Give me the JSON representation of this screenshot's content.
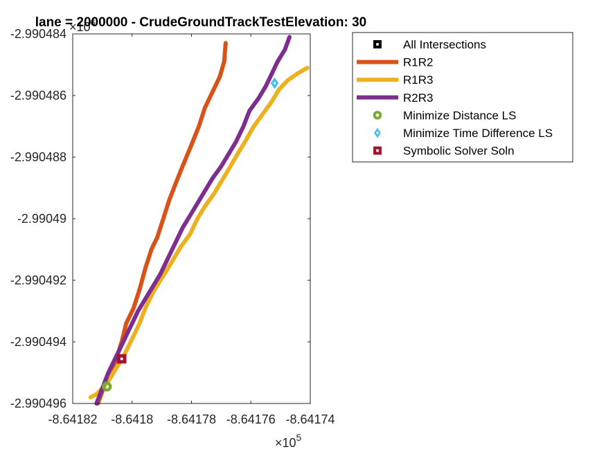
{
  "chart_data": {
    "type": "line",
    "title": "lane = 2000000 - CrudeGroundTrackTestElevation: 30",
    "xlabel": "",
    "ylabel": "",
    "x_exponent_label": "×10",
    "x_exponent_power": "5",
    "y_exponent_label": "×10",
    "y_exponent_power": "6",
    "xlim": [
      -864182,
      -864174
    ],
    "ylim": [
      -2990496,
      -2990484
    ],
    "xticks": [
      -864182,
      -864180,
      -864178,
      -864176,
      -864174
    ],
    "xtick_labels": [
      "-8.64182",
      "-8.6418",
      "-8.64178",
      "-8.64176",
      "-8.64174"
    ],
    "yticks": [
      -2990496,
      -2990494,
      -2990492,
      -2990490,
      -2990488,
      -2990486,
      -2990484
    ],
    "ytick_labels": [
      "-2.990496",
      "-2.990494",
      "-2.990492",
      "-2.99049",
      "-2.990488",
      "-2.990486",
      "-2.990484"
    ],
    "grid": false,
    "legend_position": "outside-top-right",
    "series": [
      {
        "name": "R1R2",
        "color": "#D95319",
        "x": [
          -864181.15,
          -864181.0,
          -864180.8,
          -864180.55,
          -864180.35,
          -864180.2,
          -864179.95,
          -864179.75,
          -864179.55,
          -864179.35,
          -864179.15,
          -864178.95,
          -864178.75,
          -864178.55,
          -864178.3,
          -864178.0,
          -864177.75,
          -864177.55,
          -864177.3,
          -864177.05,
          -864176.9,
          -864176.85
        ],
        "y": [
          -2990496.0,
          -2990495.6,
          -2990495.1,
          -2990494.6,
          -2990494.0,
          -2990493.4,
          -2990492.9,
          -2990492.3,
          -2990491.6,
          -2990491.0,
          -2990490.6,
          -2990490.0,
          -2990489.4,
          -2990488.9,
          -2990488.3,
          -2990487.6,
          -2990487.0,
          -2990486.4,
          -2990485.9,
          -2990485.4,
          -2990484.9,
          -2990484.3
        ]
      },
      {
        "name": "R1R3",
        "color": "#EDB120",
        "x": [
          -864181.4,
          -864181.2,
          -864181.0,
          -864180.75,
          -864180.5,
          -864180.25,
          -864180.0,
          -864179.75,
          -864179.55,
          -864179.3,
          -864179.05,
          -864178.85,
          -864178.6,
          -864178.35,
          -864178.05,
          -864177.8,
          -864177.55,
          -864177.25,
          -864177.0,
          -864176.75,
          -864176.45,
          -864176.2,
          -864175.9,
          -864175.6,
          -864175.3,
          -864175.05,
          -864174.75,
          -864174.45,
          -864174.1
        ],
        "y": [
          -2990495.8,
          -2990495.7,
          -2990495.5,
          -2990495.2,
          -2990494.8,
          -2990494.4,
          -2990493.9,
          -2990493.4,
          -2990492.9,
          -2990492.4,
          -2990492.0,
          -2990491.7,
          -2990491.3,
          -2990490.9,
          -2990490.5,
          -2990490.0,
          -2990489.6,
          -2990489.2,
          -2990488.8,
          -2990488.4,
          -2990487.9,
          -2990487.5,
          -2990487.0,
          -2990486.6,
          -2990486.2,
          -2990485.8,
          -2990485.5,
          -2990485.3,
          -2990485.1
        ]
      },
      {
        "name": "R2R3",
        "color": "#7E2F8E",
        "x": [
          -864181.2,
          -864181.0,
          -864180.8,
          -864180.55,
          -864180.3,
          -864180.05,
          -864179.8,
          -864179.55,
          -864179.3,
          -864179.05,
          -864178.8,
          -864178.55,
          -864178.3,
          -864178.05,
          -864177.8,
          -864177.55,
          -864177.3,
          -864177.0,
          -864176.75,
          -864176.5,
          -864176.25,
          -864176.05,
          -864175.75,
          -864175.5,
          -864175.3,
          -864175.1,
          -864174.85,
          -864174.7
        ],
        "y": [
          -2990496.0,
          -2990495.5,
          -2990495.0,
          -2990494.5,
          -2990494.0,
          -2990493.5,
          -2990493.0,
          -2990492.6,
          -2990492.2,
          -2990491.8,
          -2990491.3,
          -2990490.8,
          -2990490.3,
          -2990489.9,
          -2990489.5,
          -2990489.1,
          -2990488.7,
          -2990488.3,
          -2990487.9,
          -2990487.5,
          -2990487.0,
          -2990486.5,
          -2990486.1,
          -2990485.7,
          -2990485.3,
          -2990484.9,
          -2990484.5,
          -2990484.1
        ]
      }
    ],
    "markers": [
      {
        "name": "All Intersections",
        "shape": "square",
        "color": "#000000",
        "x": null,
        "y": null
      },
      {
        "name": "Minimize Distance LS",
        "shape": "circle",
        "color": "#77AC30",
        "x": -864180.85,
        "y": -2990495.45
      },
      {
        "name": "Minimize Time Difference LS",
        "shape": "diamond",
        "color": "#4DBEEE",
        "x": -864175.2,
        "y": -2990485.6
      },
      {
        "name": "Symbolic Solver Soln",
        "shape": "square",
        "color": "#A2142F",
        "x": -864180.35,
        "y": -2990494.55
      }
    ],
    "legend": [
      {
        "label": "All Intersections",
        "kind": "marker",
        "shape": "square",
        "color": "#000000"
      },
      {
        "label": "R1R2",
        "kind": "line",
        "color": "#D95319"
      },
      {
        "label": "R1R3",
        "kind": "line",
        "color": "#EDB120"
      },
      {
        "label": "R2R3",
        "kind": "line",
        "color": "#7E2F8E"
      },
      {
        "label": "Minimize Distance LS",
        "kind": "marker",
        "shape": "circle",
        "color": "#77AC30"
      },
      {
        "label": "Minimize Time Difference LS",
        "kind": "marker",
        "shape": "diamond",
        "color": "#4DBEEE"
      },
      {
        "label": "Symbolic Solver Soln",
        "kind": "marker",
        "shape": "square",
        "color": "#A2142F"
      }
    ]
  }
}
